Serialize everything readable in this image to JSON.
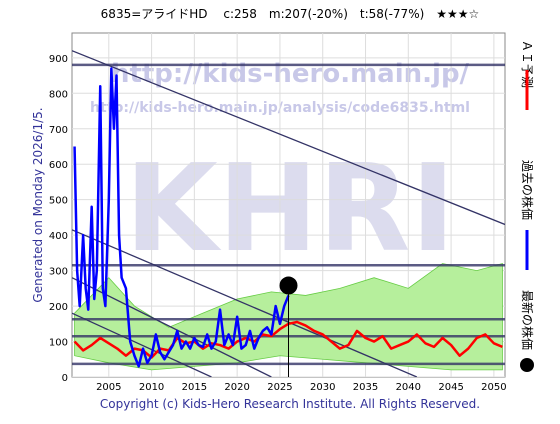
{
  "chart_data": {
    "type": "line",
    "title": "6835=アライドHD　 c:258　m:207(-20%)　t:58(-77%)　★★★☆",
    "side_label": "Generated on Monday 2026/1/5.",
    "watermarks": [
      "http://kids-hero.main.jp/",
      "http://kids-hero.main.jp/analysis/code6835.html",
      "KHRI"
    ],
    "footer": "Copyright (c) Kids-Hero Research Institute. All Rights Reserved.",
    "xlim": [
      2000.7,
      2051.3
    ],
    "ylim": [
      0,
      970
    ],
    "xticks": [
      2005,
      2010,
      2015,
      2020,
      2025,
      2030,
      2035,
      2040,
      2045,
      2050
    ],
    "yticks": [
      0,
      100,
      200,
      300,
      400,
      500,
      600,
      700,
      800,
      900
    ],
    "grid": true,
    "band": {
      "color": "#b6ef9c",
      "upper": {
        "x": [
          2001,
          2005,
          2008,
          2012,
          2016,
          2020,
          2024,
          2028,
          2032,
          2036,
          2040,
          2044,
          2048,
          2051
        ],
        "values": [
          180,
          280,
          200,
          140,
          180,
          220,
          240,
          230,
          250,
          280,
          250,
          320,
          300,
          320
        ]
      },
      "lower": {
        "x": [
          2001,
          2005,
          2010,
          2015,
          2020,
          2025,
          2030,
          2035,
          2040,
          2045,
          2051
        ],
        "values": [
          60,
          40,
          20,
          30,
          40,
          60,
          50,
          40,
          30,
          20,
          20
        ]
      }
    },
    "hlines": {
      "color": "#333366",
      "values": [
        880,
        315,
        163,
        115,
        37
      ]
    },
    "trend_lines": {
      "color": "#333366",
      "lines": [
        {
          "x": [
            2000.7,
            2051.3
          ],
          "y": [
            920,
            430
          ]
        },
        {
          "x": [
            2000.7,
            2041
          ],
          "y": [
            415,
            0
          ]
        },
        {
          "x": [
            2000.7,
            2024
          ],
          "y": [
            280,
            0
          ]
        },
        {
          "x": [
            2000.7,
            2017
          ],
          "y": [
            180,
            0
          ]
        }
      ]
    },
    "series": [
      {
        "name": "ＡＩ予測",
        "color": "#ff0000",
        "x": [
          2001,
          2002,
          2003,
          2004,
          2005,
          2006,
          2007,
          2008,
          2009,
          2010,
          2011,
          2012,
          2013,
          2014,
          2015,
          2016,
          2017,
          2018,
          2019,
          2020,
          2021,
          2022,
          2023,
          2024,
          2025,
          2026,
          2027,
          2028,
          2029,
          2030,
          2031,
          2032,
          2033,
          2034,
          2035,
          2036,
          2037,
          2038,
          2039,
          2040,
          2041,
          2042,
          2043,
          2044,
          2045,
          2046,
          2047,
          2048,
          2049,
          2050,
          2051
        ],
        "values": [
          100,
          75,
          90,
          110,
          95,
          80,
          60,
          80,
          75,
          55,
          80,
          75,
          110,
          95,
          100,
          80,
          95,
          90,
          80,
          100,
          110,
          100,
          120,
          115,
          135,
          150,
          155,
          145,
          130,
          120,
          100,
          80,
          90,
          130,
          110,
          100,
          115,
          80,
          90,
          100,
          120,
          95,
          85,
          110,
          90,
          60,
          80,
          110,
          120,
          95,
          85
        ]
      },
      {
        "name": "過去の株価",
        "color": "#0000ff",
        "x": [
          2001,
          2001.3,
          2001.6,
          2002,
          2002.3,
          2002.6,
          2003,
          2003.3,
          2003.6,
          2004,
          2004.3,
          2004.6,
          2005,
          2005.3,
          2005.6,
          2005.9,
          2006.2,
          2006.5,
          2007,
          2007.5,
          2008,
          2008.5,
          2009,
          2009.5,
          2010,
          2010.5,
          2011,
          2011.5,
          2012,
          2012.5,
          2013,
          2013.5,
          2014,
          2014.5,
          2015,
          2015.5,
          2016,
          2016.5,
          2017,
          2017.5,
          2018,
          2018.5,
          2019,
          2019.5,
          2020,
          2020.5,
          2021,
          2021.5,
          2022,
          2022.5,
          2023,
          2023.5,
          2024,
          2024.5,
          2025,
          2025.5,
          2026
        ],
        "values": [
          650,
          300,
          200,
          400,
          250,
          190,
          480,
          220,
          300,
          820,
          250,
          200,
          500,
          870,
          700,
          850,
          400,
          280,
          250,
          100,
          60,
          30,
          80,
          40,
          60,
          120,
          70,
          50,
          70,
          90,
          130,
          80,
          100,
          80,
          110,
          90,
          85,
          120,
          80,
          100,
          190,
          90,
          120,
          90,
          170,
          80,
          90,
          130,
          80,
          110,
          130,
          140,
          120,
          200,
          150,
          200,
          230
        ]
      },
      {
        "name": "最新の株価",
        "color": "#000000",
        "x": [
          2026
        ],
        "values": [
          258
        ]
      }
    ]
  }
}
